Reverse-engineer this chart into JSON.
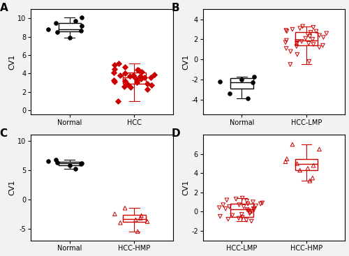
{
  "A": {
    "label": "A",
    "categories": [
      "Normal",
      "HCC"
    ],
    "normal_data": [
      9.2,
      8.8,
      9.7,
      8.7,
      7.9,
      8.5,
      9.5,
      10.1
    ],
    "hcc_data": [
      3.2,
      3.5,
      3.8,
      3.1,
      2.9,
      4.2,
      3.7,
      4.4,
      3.3,
      2.8,
      3.9,
      4.5,
      3.6,
      2.7,
      4.1,
      3.4,
      3.0,
      4.3,
      3.8,
      2.6,
      4.0,
      3.2,
      3.7,
      2.3,
      2.5,
      1.0,
      5.1,
      4.9,
      3.6,
      4.7
    ],
    "normal_box": {
      "q1": 8.6,
      "median": 8.85,
      "q3": 9.5,
      "whislo": 7.9,
      "whishi": 10.1
    },
    "hcc_box": {
      "q1": 2.9,
      "median": 3.55,
      "q3": 4.1,
      "whislo": 1.0,
      "whishi": 5.1
    },
    "ylabel": "CV1",
    "ylim": [
      -0.5,
      11
    ],
    "yticks": [
      0,
      2,
      4,
      6,
      8,
      10
    ],
    "normal_color": "black",
    "hcc_color": "#cc0000",
    "normal_marker": "o",
    "hcc_marker": "D",
    "normal_filled": true,
    "hcc_filled": true
  },
  "B": {
    "label": "B",
    "categories": [
      "Normal",
      "HCC-LMP"
    ],
    "normal_data": [
      -1.7,
      -2.2,
      -3.9,
      -2.3,
      -2.0,
      -3.4
    ],
    "hcc_data": [
      1.8,
      2.5,
      3.0,
      2.8,
      1.2,
      1.5,
      2.0,
      2.3,
      1.7,
      3.1,
      2.6,
      1.9,
      1.4,
      2.2,
      2.9,
      3.2,
      1.6,
      2.7,
      2.1,
      1.3,
      0.5,
      -0.2,
      1.8,
      2.4,
      3.3,
      -0.5,
      0.8,
      1.1,
      2.8,
      1.6
    ],
    "normal_box": {
      "q1": -2.9,
      "median": -2.25,
      "q3": -1.85,
      "whislo": -3.9,
      "whishi": -1.7
    },
    "hcc_box": {
      "q1": 1.4,
      "median": 1.9,
      "q3": 2.7,
      "whislo": -0.5,
      "whishi": 3.3
    },
    "ylabel": "CV1",
    "ylim": [
      -5.5,
      5
    ],
    "yticks": [
      -4,
      -2,
      0,
      2,
      4
    ],
    "normal_color": "black",
    "hcc_color": "#cc0000",
    "normal_marker": "o",
    "hcc_marker": "v",
    "normal_filled": true,
    "hcc_filled": false
  },
  "C": {
    "label": "C",
    "categories": [
      "Normal",
      "HCC-HMP"
    ],
    "normal_data": [
      6.2,
      6.5,
      5.2,
      6.0,
      5.8,
      6.3,
      6.8
    ],
    "hcc_data": [
      -1.5,
      -3.5,
      -4.0,
      -2.5,
      -3.8,
      -2.8,
      -3.2,
      -5.5
    ],
    "normal_box": {
      "q1": 5.8,
      "median": 6.2,
      "q3": 6.4,
      "whislo": 5.2,
      "whishi": 6.8
    },
    "hcc_box": {
      "q1": -3.9,
      "median": -3.35,
      "q3": -2.65,
      "whislo": -5.5,
      "whishi": -1.5
    },
    "ylabel": "CV1",
    "ylim": [
      -7,
      11
    ],
    "yticks": [
      -5,
      0,
      5,
      10
    ],
    "normal_color": "black",
    "hcc_color": "#cc0000",
    "normal_marker": "o",
    "hcc_marker": "^",
    "normal_filled": true,
    "hcc_filled": false
  },
  "D": {
    "label": "D",
    "categories": [
      "HCC-LMP",
      "HCC-HMP"
    ],
    "lmp_data": [
      0.2,
      -0.5,
      0.8,
      1.0,
      -0.3,
      0.5,
      -0.8,
      0.3,
      1.2,
      0.7,
      -0.1,
      0.9,
      0.4,
      -0.6,
      0.6,
      1.1,
      0.0,
      -0.4,
      0.8,
      -1.0,
      0.5,
      0.3,
      1.3,
      -0.2,
      0.7,
      -0.7,
      0.2,
      1.4,
      0.1,
      -0.9
    ],
    "hmp_data": [
      5.0,
      4.5,
      7.0,
      5.5,
      6.5,
      4.8,
      3.5,
      3.2,
      5.2,
      4.3
    ],
    "lmp_box": {
      "q1": -0.55,
      "median": 0.25,
      "q3": 0.8,
      "whislo": -1.0,
      "whishi": 1.4
    },
    "hmp_box": {
      "q1": 4.3,
      "median": 5.0,
      "q3": 5.5,
      "whislo": 3.2,
      "whishi": 7.0
    },
    "ylabel": "CV1",
    "ylim": [
      -3,
      8
    ],
    "yticks": [
      -2,
      0,
      2,
      4,
      6
    ],
    "lmp_color": "#cc0000",
    "hmp_color": "#cc0000",
    "lmp_marker": "v",
    "hmp_marker": "^",
    "lmp_filled": false,
    "hmp_filled": false
  },
  "fig_bg": "#f2f2f2"
}
